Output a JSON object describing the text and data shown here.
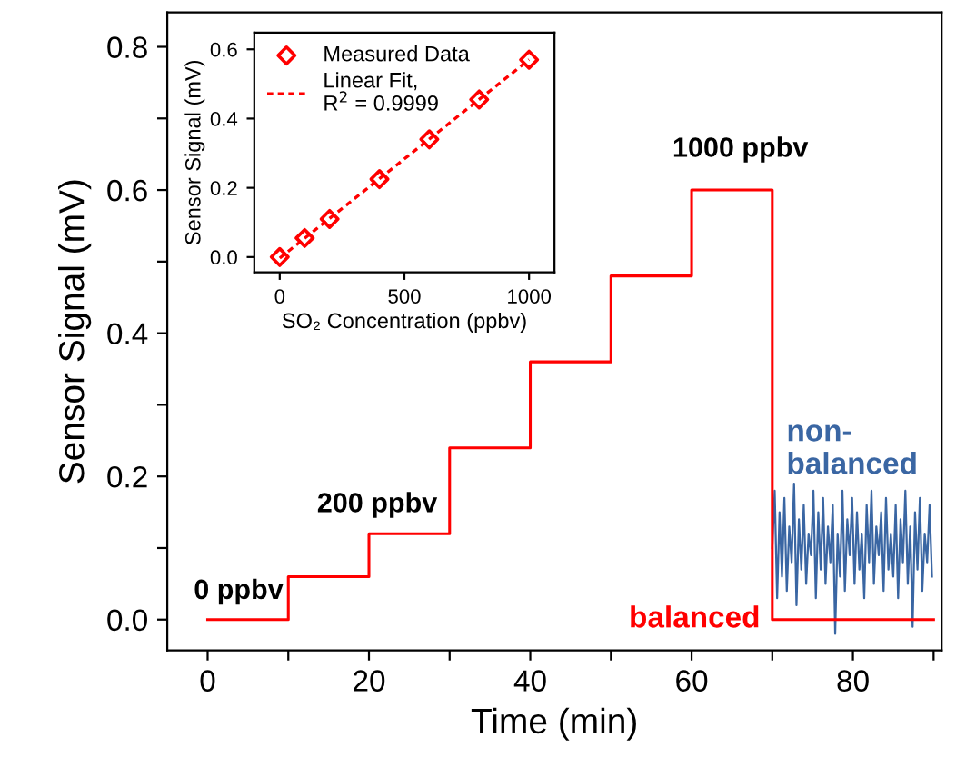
{
  "chart_data": [
    {
      "type": "line",
      "xlabel": "Time (min)",
      "ylabel": "Sensor Signal (mV)",
      "xlim": [
        -5,
        91
      ],
      "ylim": [
        -0.043,
        0.848
      ],
      "xticks": [
        0,
        {
          "value": 10,
          "label": null
        },
        20,
        {
          "value": 30,
          "label": null
        },
        40,
        {
          "value": 50,
          "label": null
        },
        60,
        {
          "value": 70,
          "label": null
        },
        80,
        {
          "value": 90,
          "label": null
        }
      ],
      "yticks": [
        {
          "value": 0,
          "label": "0.0"
        },
        {
          "value": 0.1,
          "label": null
        },
        0.2,
        {
          "value": 0.3,
          "label": null
        },
        0.4,
        {
          "value": 0.5,
          "label": null
        },
        0.6,
        {
          "value": 0.7,
          "label": null
        },
        0.8
      ],
      "grid": false,
      "legend": false,
      "series": [
        {
          "name": "non-\nbalanced",
          "color": "#3a66a3",
          "x": [
            70.0,
            70.3,
            70.6,
            70.9,
            71.2,
            71.5,
            71.8,
            72.1,
            72.4,
            72.7,
            73.0,
            73.3,
            73.6,
            73.9,
            74.2,
            74.5,
            74.8,
            75.1,
            75.4,
            75.7,
            76.0,
            76.3,
            76.6,
            76.9,
            77.2,
            77.5,
            77.8,
            78.1,
            78.4,
            78.7,
            79.0,
            79.3,
            79.6,
            79.9,
            80.2,
            80.5,
            80.8,
            81.1,
            81.4,
            81.7,
            82.0,
            82.3,
            82.6,
            82.9,
            83.2,
            83.5,
            83.8,
            84.1,
            84.4,
            84.7,
            85.0,
            85.3,
            85.6,
            85.9,
            86.2,
            86.5,
            86.8,
            87.1,
            87.4,
            87.7,
            88.0,
            88.3,
            88.6,
            88.9,
            89.2,
            89.5,
            89.8
          ],
          "values": [
            0.1,
            0.18,
            0.03,
            0.15,
            0.06,
            0.17,
            0.04,
            0.13,
            0.08,
            0.19,
            0.02,
            0.14,
            0.07,
            0.16,
            0.05,
            0.12,
            0.09,
            0.18,
            0.03,
            0.15,
            0.07,
            0.17,
            0.05,
            0.13,
            0.08,
            0.16,
            -0.02,
            0.12,
            0.06,
            0.18,
            0.04,
            0.14,
            0.09,
            0.17,
            0.05,
            0.15,
            0.07,
            0.12,
            0.03,
            0.16,
            0.08,
            0.18,
            0.05,
            0.13,
            0.09,
            0.15,
            0.04,
            0.17,
            0.07,
            0.12,
            0.06,
            0.16,
            0.03,
            0.14,
            0.08,
            0.18,
            0.05,
            0.13,
            -0.01,
            0.15,
            0.07,
            0.17,
            0.04,
            0.12,
            0.08,
            0.16,
            0.06
          ]
        },
        {
          "type": "step",
          "name": "balanced",
          "color": "#ff0000",
          "x": [
            0,
            10,
            20,
            30,
            40,
            50,
            60,
            70,
            90
          ],
          "values": [
            0.0,
            0.06,
            0.12,
            0.24,
            0.36,
            0.48,
            0.6,
            0.0,
            0.0
          ]
        }
      ],
      "annotations": [
        "0 ppbv",
        "200 ppbv",
        "1000 ppbv"
      ]
    },
    {
      "type": "scatter",
      "xlabel": "SO₂ Concentration (ppbv)",
      "ylabel": "Sensor Signal (mV)",
      "xlim": [
        -102,
        1102
      ],
      "ylim": [
        -0.044,
        0.648
      ],
      "xticks": [
        0,
        500,
        1000
      ],
      "yticks": [
        {
          "value": 0,
          "label": "0.0"
        },
        0.2,
        0.4,
        0.6
      ],
      "grid": false,
      "legend": "top left",
      "series": [
        {
          "name": "Measured Data",
          "color": "#ff0000",
          "marker": "diamond",
          "x": [
            0,
            100,
            200,
            400,
            600,
            800,
            1000
          ],
          "values": [
            0.0,
            0.055,
            0.11,
            0.225,
            0.34,
            0.455,
            0.57
          ]
        },
        {
          "type": "line",
          "name": "Linear Fit,\nR$^{2}$ = 0.9999",
          "color": "#ff0000",
          "line_style": "dotted",
          "x": [
            0,
            1000
          ],
          "values": [
            -0.003,
            0.57
          ]
        }
      ]
    }
  ]
}
